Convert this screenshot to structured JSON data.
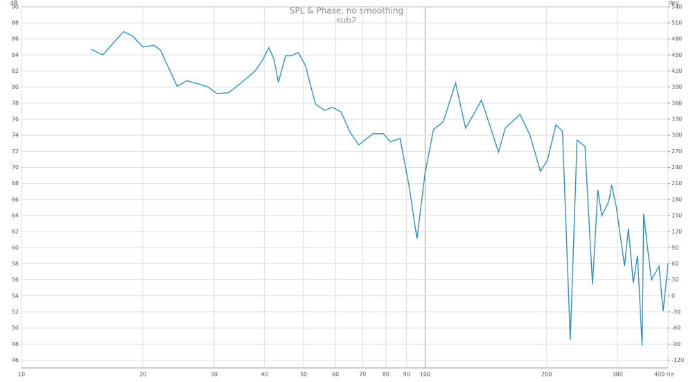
{
  "chart_data": {
    "type": "line",
    "title": "SPL & Phase, no smoothing",
    "subtitle": "sub2",
    "y_label": "dB",
    "y2_label": "deg",
    "log_x": true,
    "grid": true,
    "xlim": [
      10,
      400
    ],
    "xticks": [
      10,
      20,
      30,
      40,
      50,
      60,
      70,
      80,
      90,
      100,
      200,
      300,
      {
        "value": 400,
        "label": "400 Hz"
      }
    ],
    "ylim": [
      45,
      90
    ],
    "yticks": [
      46,
      48,
      50,
      52,
      54,
      56,
      58,
      60,
      62,
      64,
      66,
      68,
      70,
      72,
      74,
      76,
      78,
      80,
      82,
      84,
      86,
      88,
      90
    ],
    "y2lim": [
      -135,
      540
    ],
    "y2ticks": [
      -120,
      -90,
      -60,
      -30,
      0,
      30,
      60,
      90,
      120,
      150,
      180,
      210,
      240,
      270,
      300,
      330,
      360,
      390,
      420,
      450,
      480,
      510,
      540
    ],
    "series": [
      {
        "name": "sub2",
        "color": "#2f8fbf",
        "x": [
          14.9,
          15.9,
          16.9,
          17.9,
          18.8,
          20,
          21.3,
          22.1,
          23,
          24.3,
          25.7,
          27.8,
          29,
          30.5,
          32.6,
          34.6,
          37.9,
          39.5,
          41,
          42.2,
          43.3,
          45.1,
          46.6,
          48.5,
          50.5,
          53.5,
          56.3,
          59,
          61.9,
          65.3,
          68.5,
          74.3,
          78.8,
          82,
          86.7,
          91.3,
          95.5,
          100,
          104.9,
          111,
          119,
          126,
          133,
          138,
          152,
          158,
          172,
          182,
          193,
          201,
          211,
          219,
          229,
          238,
          249,
          260,
          268,
          274,
          285,
          290,
          298,
          312,
          319,
          328,
          336,
          345,
          348,
          357,
          364,
          380,
          389,
          400
        ],
        "values": [
          84.7,
          84,
          85.5,
          86.9,
          86.4,
          85,
          85.2,
          84.6,
          82.7,
          80.1,
          80.8,
          80.3,
          80,
          79.2,
          79.3,
          80.3,
          82,
          83.3,
          84.9,
          83.5,
          80.6,
          83.9,
          83.9,
          84.3,
          82.7,
          77.9,
          77.1,
          77.5,
          76.9,
          74.3,
          72.8,
          74.2,
          74.2,
          73.2,
          73.6,
          67.6,
          61.1,
          69.3,
          74.7,
          75.7,
          80.5,
          74.9,
          76.9,
          78.4,
          71.9,
          74.9,
          76.6,
          74,
          69.5,
          70.9,
          75.3,
          74.5,
          48.5,
          73.4,
          72.6,
          55.4,
          67.2,
          64,
          65.7,
          67.8,
          65,
          57.7,
          62.4,
          55.6,
          59,
          47.8,
          64.2,
          59.4,
          56,
          57.7,
          52.1,
          58
        ]
      }
    ]
  }
}
